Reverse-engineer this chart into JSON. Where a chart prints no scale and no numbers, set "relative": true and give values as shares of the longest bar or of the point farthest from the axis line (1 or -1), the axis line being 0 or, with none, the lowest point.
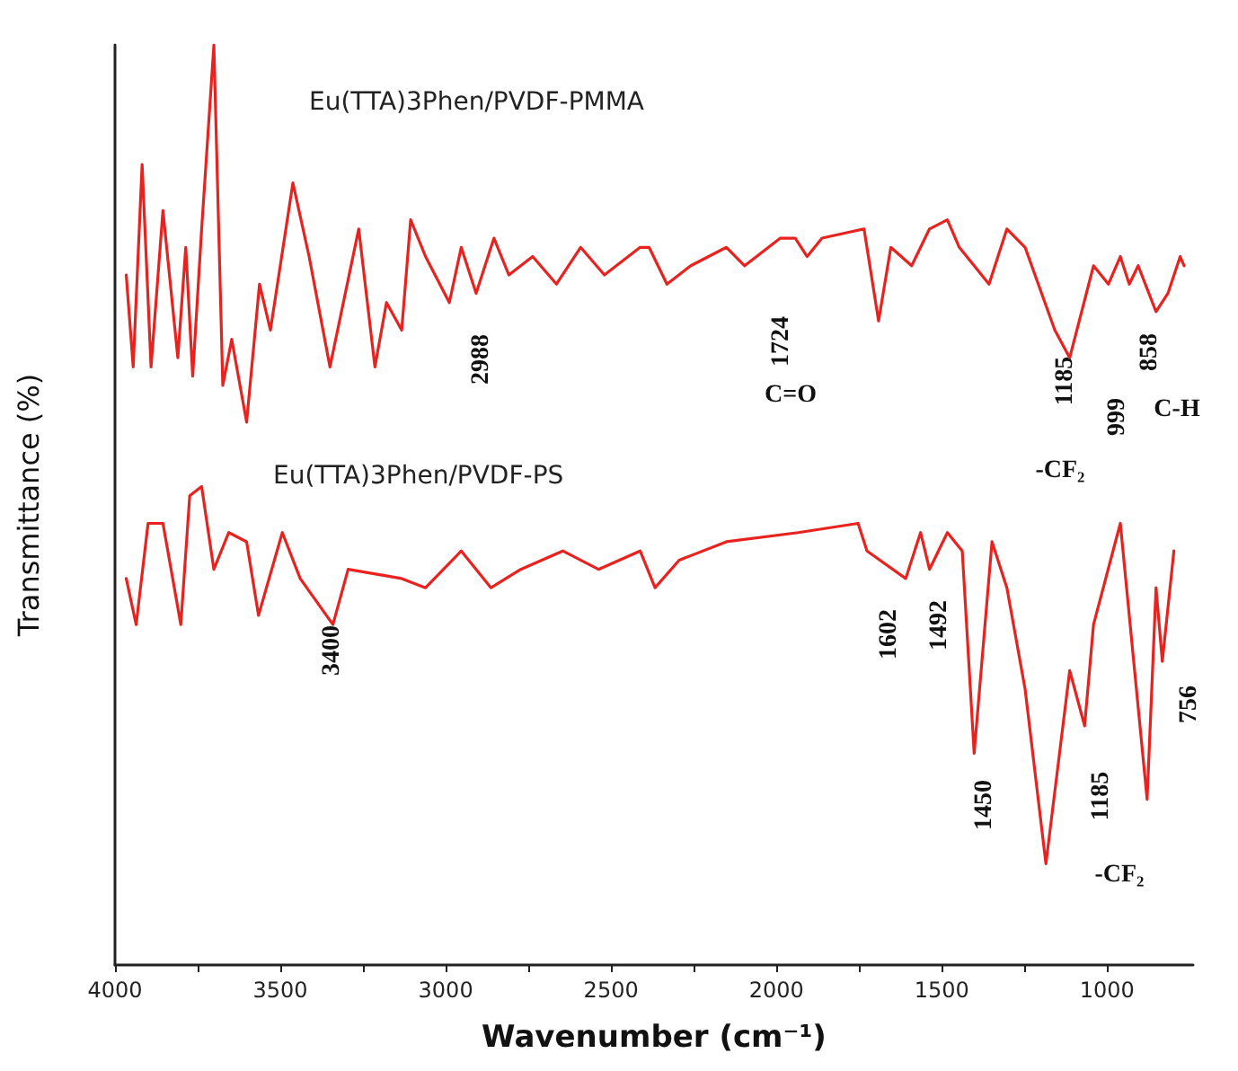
{
  "chart_data": {
    "type": "line",
    "relative": true,
    "xlabel": "Wavenumber (cm⁻¹)",
    "ylabel": "Transmittance (%)",
    "xlim": [
      4000,
      740
    ],
    "xticks": [
      4000,
      {
        "value": 3750,
        "label": null
      },
      3500,
      {
        "value": 3250,
        "label": null
      },
      3000,
      {
        "value": 2750,
        "label": null
      },
      2500,
      {
        "value": 2250,
        "label": null
      },
      2000,
      {
        "value": 1750,
        "label": null
      },
      1500,
      {
        "value": 1250,
        "label": null
      },
      1000
    ],
    "legend": false,
    "grid": false,
    "marker": "none",
    "line_style": "solid",
    "series": [
      {
        "name": "Eu(TTA)3Phen/PVDF-PMMA",
        "color": "#e8231f",
        "x": [
          3966,
          3945,
          3918,
          3891,
          3855,
          3810,
          3786,
          3765,
          3738,
          3701,
          3674,
          3647,
          3602,
          3563,
          3530,
          3462,
          3413,
          3350,
          3263,
          3214,
          3179,
          3133,
          3106,
          3061,
          2989,
          2953,
          2908,
          2854,
          2809,
          2737,
          2665,
          2592,
          2520,
          2412,
          2385,
          2331,
          2259,
          2151,
          2096,
          1988,
          1943,
          1907,
          1862,
          1735,
          1691,
          1654,
          1591,
          1537,
          1483,
          1447,
          1357,
          1303,
          1248,
          1158,
          1113,
          1041,
          996,
          960,
          933,
          906,
          852,
          816,
          779,
          767
        ],
        "values": [
          0.75,
          0.65,
          0.87,
          0.65,
          0.82,
          0.66,
          0.78,
          0.64,
          0.8,
          1.0,
          0.63,
          0.68,
          0.59,
          0.74,
          0.69,
          0.85,
          0.77,
          0.65,
          0.8,
          0.65,
          0.72,
          0.69,
          0.81,
          0.77,
          0.72,
          0.78,
          0.73,
          0.79,
          0.75,
          0.77,
          0.74,
          0.78,
          0.75,
          0.78,
          0.78,
          0.74,
          0.76,
          0.78,
          0.76,
          0.79,
          0.79,
          0.77,
          0.79,
          0.8,
          0.7,
          0.78,
          0.76,
          0.8,
          0.81,
          0.78,
          0.74,
          0.8,
          0.78,
          0.69,
          0.66,
          0.76,
          0.74,
          0.77,
          0.74,
          0.76,
          0.71,
          0.73,
          0.77,
          0.76
        ]
      },
      {
        "name": "Eu(TTA)3Phen/PVDF-PS",
        "color": "#e8231f",
        "x": [
          3966,
          3936,
          3900,
          3855,
          3801,
          3774,
          3738,
          3701,
          3656,
          3602,
          3566,
          3494,
          3440,
          3341,
          3295,
          3133,
          3061,
          2953,
          2863,
          2773,
          2646,
          2538,
          2412,
          2367,
          2294,
          2151,
          1934,
          1753,
          1726,
          1609,
          1564,
          1537,
          1483,
          1438,
          1402,
          1348,
          1303,
          1248,
          1185,
          1113,
          1068,
          1041,
          960,
          879,
          852,
          833,
          798
        ],
        "values": [
          0.42,
          0.37,
          0.48,
          0.48,
          0.37,
          0.51,
          0.52,
          0.43,
          0.47,
          0.46,
          0.38,
          0.47,
          0.42,
          0.37,
          0.43,
          0.42,
          0.41,
          0.45,
          0.41,
          0.43,
          0.45,
          0.43,
          0.45,
          0.41,
          0.44,
          0.46,
          0.47,
          0.48,
          0.45,
          0.42,
          0.47,
          0.43,
          0.47,
          0.45,
          0.23,
          0.46,
          0.41,
          0.3,
          0.11,
          0.32,
          0.26,
          0.37,
          0.48,
          0.18,
          0.41,
          0.33,
          0.45
        ]
      }
    ],
    "annotations": [
      "2988",
      "1724",
      "C=O",
      "1185",
      "999",
      "858",
      "C-H",
      "-CF₂",
      "3400",
      "1602",
      "1492",
      "1450",
      "1185",
      "-CF₂",
      "756"
    ]
  }
}
